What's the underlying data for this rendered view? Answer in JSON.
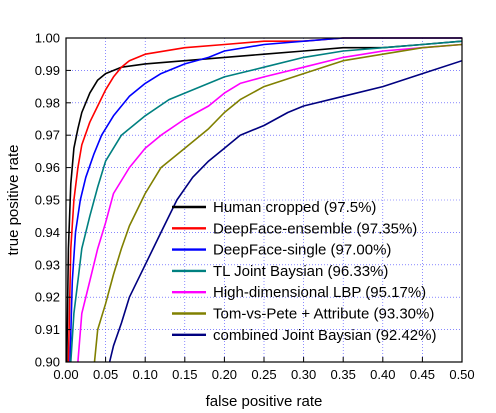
{
  "chart_data": {
    "type": "line",
    "title": "",
    "xlabel": "false positive rate",
    "ylabel": "true positive rate",
    "xlim": [
      0,
      0.5
    ],
    "ylim": [
      0.9,
      1.0
    ],
    "x_ticks": [
      "0.00",
      "0.05",
      "0.10",
      "0.15",
      "0.20",
      "0.25",
      "0.30",
      "0.35",
      "0.40",
      "0.45",
      "0.50"
    ],
    "y_ticks": [
      "0.90",
      "0.91",
      "0.92",
      "0.93",
      "0.94",
      "0.95",
      "0.96",
      "0.97",
      "0.98",
      "0.99",
      "1.00"
    ],
    "grid": true,
    "legend_position": "bottom-right",
    "series": [
      {
        "name": "Human cropped (97.5%)",
        "color": "#000000",
        "x": [
          0.001,
          0.003,
          0.006,
          0.01,
          0.015,
          0.02,
          0.03,
          0.04,
          0.05,
          0.07,
          0.1,
          0.15,
          0.2,
          0.25,
          0.3,
          0.35,
          0.4,
          0.45,
          0.5
        ],
        "y": [
          0.9,
          0.935,
          0.955,
          0.966,
          0.972,
          0.977,
          0.983,
          0.987,
          0.989,
          0.991,
          0.992,
          0.993,
          0.994,
          0.995,
          0.996,
          0.997,
          0.997,
          0.998,
          0.999
        ]
      },
      {
        "name": "DeepFace-ensemble (97.35%)",
        "color": "#ff0000",
        "x": [
          0.003,
          0.006,
          0.01,
          0.015,
          0.02,
          0.03,
          0.04,
          0.05,
          0.06,
          0.07,
          0.08,
          0.1,
          0.15,
          0.2,
          0.25,
          0.3,
          0.35,
          0.4,
          0.45,
          0.5
        ],
        "y": [
          0.9,
          0.935,
          0.95,
          0.96,
          0.967,
          0.974,
          0.979,
          0.984,
          0.988,
          0.991,
          0.993,
          0.995,
          0.997,
          0.998,
          0.999,
          0.999,
          1.0,
          1.0,
          1.0,
          1.0
        ]
      },
      {
        "name": "DeepFace-single (97.00%)",
        "color": "#0000ff",
        "x": [
          0.005,
          0.008,
          0.012,
          0.018,
          0.025,
          0.035,
          0.045,
          0.06,
          0.08,
          0.1,
          0.12,
          0.15,
          0.18,
          0.2,
          0.25,
          0.3,
          0.35,
          0.4,
          0.45,
          0.5
        ],
        "y": [
          0.9,
          0.925,
          0.94,
          0.95,
          0.957,
          0.964,
          0.97,
          0.976,
          0.982,
          0.986,
          0.989,
          0.992,
          0.994,
          0.996,
          0.998,
          0.999,
          1.0,
          1.0,
          1.0,
          1.0
        ]
      },
      {
        "name": "TL Joint Baysian (96.33%)",
        "color": "#008080",
        "x": [
          0.006,
          0.01,
          0.015,
          0.02,
          0.03,
          0.04,
          0.05,
          0.07,
          0.1,
          0.13,
          0.15,
          0.2,
          0.25,
          0.3,
          0.35,
          0.4,
          0.45,
          0.5
        ],
        "y": [
          0.9,
          0.915,
          0.925,
          0.935,
          0.945,
          0.954,
          0.962,
          0.97,
          0.976,
          0.981,
          0.983,
          0.988,
          0.991,
          0.994,
          0.996,
          0.997,
          0.998,
          0.999
        ]
      },
      {
        "name": "High-dimensional LBP (95.17%)",
        "color": "#ff00ff",
        "x": [
          0.015,
          0.02,
          0.03,
          0.04,
          0.05,
          0.06,
          0.08,
          0.1,
          0.12,
          0.15,
          0.18,
          0.2,
          0.22,
          0.25,
          0.3,
          0.35,
          0.4,
          0.45,
          0.5
        ],
        "y": [
          0.9,
          0.915,
          0.925,
          0.935,
          0.943,
          0.952,
          0.96,
          0.966,
          0.97,
          0.975,
          0.979,
          0.983,
          0.986,
          0.988,
          0.991,
          0.994,
          0.996,
          0.997,
          0.998
        ]
      },
      {
        "name": "Tom-vs-Pete + Attribute (93.30%)",
        "color": "#808000",
        "x": [
          0.036,
          0.04,
          0.05,
          0.06,
          0.07,
          0.08,
          0.1,
          0.12,
          0.15,
          0.18,
          0.2,
          0.22,
          0.25,
          0.3,
          0.35,
          0.4,
          0.45,
          0.5
        ],
        "y": [
          0.9,
          0.91,
          0.918,
          0.927,
          0.935,
          0.942,
          0.952,
          0.96,
          0.966,
          0.972,
          0.977,
          0.981,
          0.985,
          0.989,
          0.993,
          0.995,
          0.997,
          0.998
        ]
      },
      {
        "name": "combined Joint Baysian (92.42%)",
        "color": "#000080",
        "x": [
          0.055,
          0.06,
          0.07,
          0.08,
          0.1,
          0.12,
          0.14,
          0.16,
          0.18,
          0.2,
          0.22,
          0.25,
          0.28,
          0.3,
          0.35,
          0.4,
          0.45,
          0.5
        ],
        "y": [
          0.9,
          0.905,
          0.912,
          0.92,
          0.93,
          0.94,
          0.95,
          0.957,
          0.962,
          0.966,
          0.97,
          0.973,
          0.977,
          0.979,
          0.982,
          0.985,
          0.989,
          0.993
        ]
      }
    ]
  }
}
